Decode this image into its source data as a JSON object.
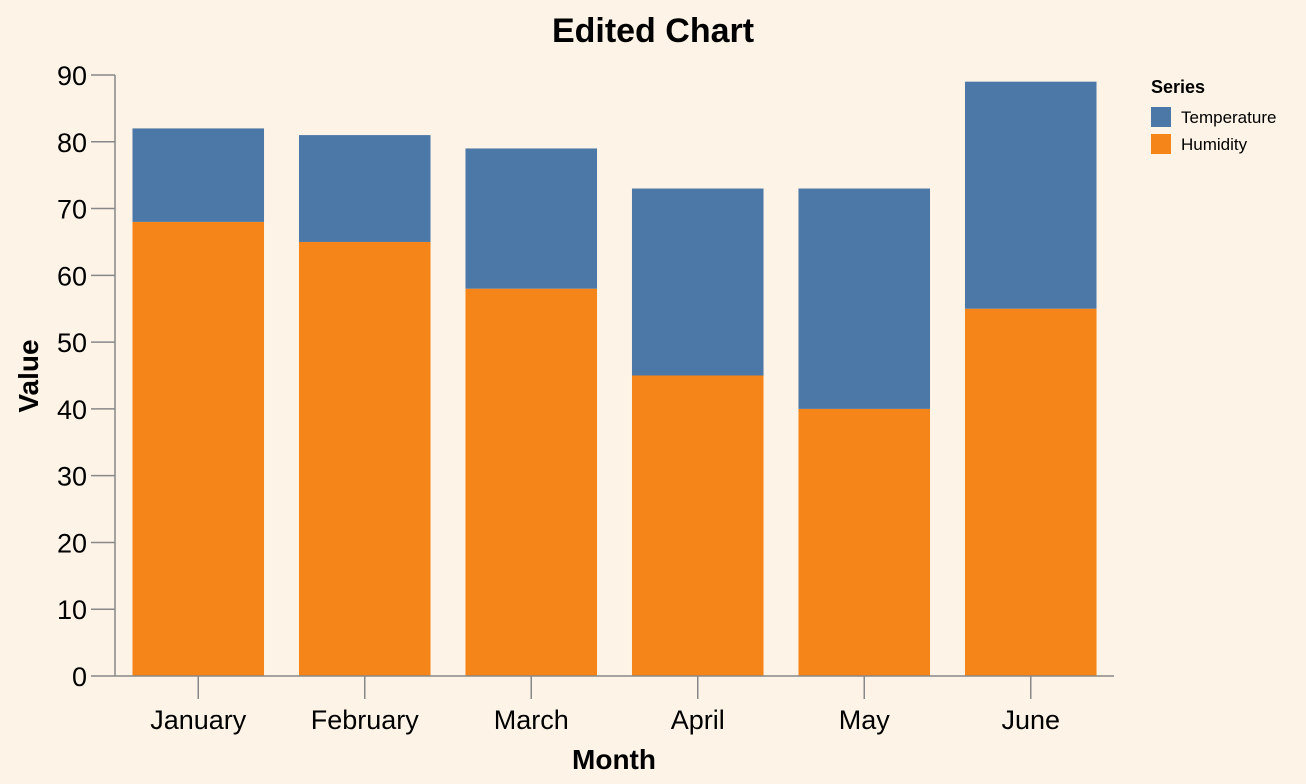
{
  "chart_data": {
    "type": "bar",
    "stacked": true,
    "title": "Edited Chart",
    "xlabel": "Month",
    "ylabel": "Value",
    "categories": [
      "January",
      "February",
      "March",
      "April",
      "May",
      "June"
    ],
    "ylim": [
      0,
      90
    ],
    "yticks": [
      0,
      10,
      20,
      30,
      40,
      50,
      60,
      70,
      80,
      90
    ],
    "grid": false,
    "legend": {
      "title": "Series",
      "placement": "right"
    },
    "series": [
      {
        "name": "Humidity",
        "color": "#f58518",
        "values": [
          68,
          65,
          58,
          45,
          40,
          55
        ]
      },
      {
        "name": "Temperature",
        "color": "#4c78a8",
        "values": [
          14,
          16,
          21,
          28,
          33,
          34
        ]
      }
    ],
    "legend_order": [
      "Temperature",
      "Humidity"
    ]
  }
}
